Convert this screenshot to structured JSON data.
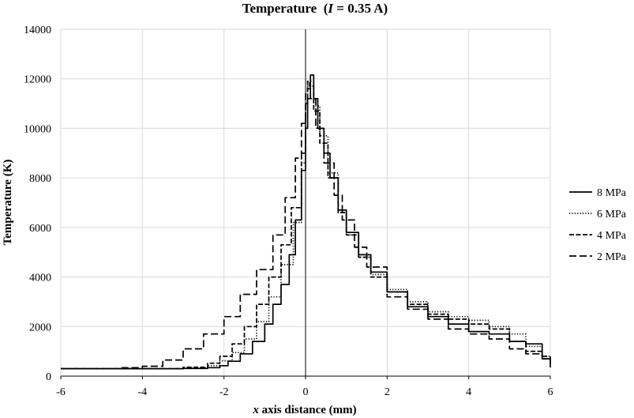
{
  "chart_data": {
    "type": "line",
    "title_main": "Temperature",
    "title_var": "I",
    "title_rest": " = 0.35 A)",
    "xlabel_var": "x",
    "xlabel_rest": " axis distance (mm)",
    "ylabel": "Temperature (K)",
    "xlim": [
      -6,
      6
    ],
    "ylim": [
      0,
      14000
    ],
    "xticks": [
      -6,
      -4,
      -2,
      0,
      2,
      4,
      6
    ],
    "yticks": [
      0,
      2000,
      4000,
      6000,
      8000,
      10000,
      12000,
      14000
    ],
    "grid": true,
    "legend_position": "right",
    "series": [
      {
        "name": "8 MPa",
        "dash": "",
        "points": [
          [
            -6,
            300
          ],
          [
            -4,
            300
          ],
          [
            -3,
            310
          ],
          [
            -2.4,
            340
          ],
          [
            -2.1,
            420
          ],
          [
            -1.9,
            600
          ],
          [
            -1.6,
            900
          ],
          [
            -1.3,
            1400
          ],
          [
            -1.0,
            2100
          ],
          [
            -0.8,
            2900
          ],
          [
            -0.6,
            3700
          ],
          [
            -0.4,
            4900
          ],
          [
            -0.25,
            6300
          ],
          [
            -0.1,
            8300
          ],
          [
            0,
            10000
          ],
          [
            0.05,
            11200
          ],
          [
            0.12,
            12150
          ],
          [
            0.2,
            11200
          ],
          [
            0.3,
            10000
          ],
          [
            0.45,
            9000
          ],
          [
            0.6,
            8000
          ],
          [
            0.8,
            6700
          ],
          [
            1.0,
            5800
          ],
          [
            1.3,
            4900
          ],
          [
            1.6,
            4200
          ],
          [
            2.0,
            3400
          ],
          [
            2.5,
            2800
          ],
          [
            3.0,
            2400
          ],
          [
            3.5,
            2100
          ],
          [
            4.0,
            1800
          ],
          [
            4.5,
            1700
          ],
          [
            5.0,
            1400
          ],
          [
            5.4,
            1300
          ],
          [
            5.8,
            700
          ],
          [
            6.0,
            350
          ]
        ]
      },
      {
        "name": "6 MPa",
        "dash": "1.2,2.2",
        "points": [
          [
            -6,
            300
          ],
          [
            -4,
            300
          ],
          [
            -3,
            330
          ],
          [
            -2.4,
            420
          ],
          [
            -2.1,
            620
          ],
          [
            -1.8,
            950
          ],
          [
            -1.5,
            1500
          ],
          [
            -1.2,
            2200
          ],
          [
            -0.9,
            3200
          ],
          [
            -0.6,
            4500
          ],
          [
            -0.3,
            6200
          ],
          [
            -0.1,
            8600
          ],
          [
            0,
            10500
          ],
          [
            0.05,
            11700
          ],
          [
            0.1,
            11900
          ],
          [
            0.2,
            10900
          ],
          [
            0.35,
            9700
          ],
          [
            0.55,
            8200
          ],
          [
            0.8,
            6600
          ],
          [
            1.0,
            5700
          ],
          [
            1.3,
            4800
          ],
          [
            1.6,
            4100
          ],
          [
            2.0,
            3500
          ],
          [
            2.5,
            3000
          ],
          [
            3.0,
            2600
          ],
          [
            3.5,
            2400
          ],
          [
            4.0,
            2250
          ],
          [
            4.5,
            2000
          ],
          [
            5.0,
            1700
          ],
          [
            5.4,
            1200
          ],
          [
            5.8,
            800
          ],
          [
            6.0,
            500
          ]
        ]
      },
      {
        "name": "4 MPa",
        "dash": "6,2.5",
        "points": [
          [
            -6,
            300
          ],
          [
            -4,
            300
          ],
          [
            -3,
            360
          ],
          [
            -2.4,
            520
          ],
          [
            -2.1,
            800
          ],
          [
            -1.8,
            1300
          ],
          [
            -1.5,
            2000
          ],
          [
            -1.2,
            2900
          ],
          [
            -0.9,
            4000
          ],
          [
            -0.6,
            5300
          ],
          [
            -0.35,
            6800
          ],
          [
            -0.1,
            9000
          ],
          [
            0,
            11000
          ],
          [
            0.05,
            11900
          ],
          [
            0.1,
            11700
          ],
          [
            0.2,
            10700
          ],
          [
            0.35,
            9400
          ],
          [
            0.55,
            8000
          ],
          [
            0.8,
            6600
          ],
          [
            1.0,
            5700
          ],
          [
            1.3,
            4800
          ],
          [
            1.6,
            4000
          ],
          [
            2.0,
            3400
          ],
          [
            2.5,
            2900
          ],
          [
            3.0,
            2500
          ],
          [
            3.5,
            2300
          ],
          [
            4.0,
            2100
          ],
          [
            4.5,
            1900
          ],
          [
            5.0,
            1400
          ],
          [
            5.4,
            1000
          ],
          [
            5.8,
            700
          ],
          [
            6.0,
            600
          ]
        ]
      },
      {
        "name": "2 MPa",
        "dash": "9,4",
        "points": [
          [
            -6,
            300
          ],
          [
            -4.5,
            340
          ],
          [
            -4,
            400
          ],
          [
            -3.5,
            650
          ],
          [
            -3,
            1100
          ],
          [
            -2.5,
            1700
          ],
          [
            -2,
            2400
          ],
          [
            -1.6,
            3300
          ],
          [
            -1.2,
            4300
          ],
          [
            -0.8,
            5700
          ],
          [
            -0.5,
            7200
          ],
          [
            -0.25,
            8800
          ],
          [
            -0.1,
            10200
          ],
          [
            0,
            11400
          ],
          [
            0.05,
            11600
          ],
          [
            0.12,
            11200
          ],
          [
            0.25,
            10000
          ],
          [
            0.45,
            8600
          ],
          [
            0.7,
            7300
          ],
          [
            0.9,
            6300
          ],
          [
            1.2,
            5200
          ],
          [
            1.5,
            4400
          ],
          [
            2.0,
            3200
          ],
          [
            2.5,
            2700
          ],
          [
            3.0,
            2300
          ],
          [
            3.5,
            1900
          ],
          [
            4.0,
            1700
          ],
          [
            4.5,
            1500
          ],
          [
            5.0,
            1100
          ],
          [
            5.4,
            900
          ],
          [
            5.8,
            800
          ],
          [
            6.0,
            700
          ]
        ]
      }
    ]
  }
}
